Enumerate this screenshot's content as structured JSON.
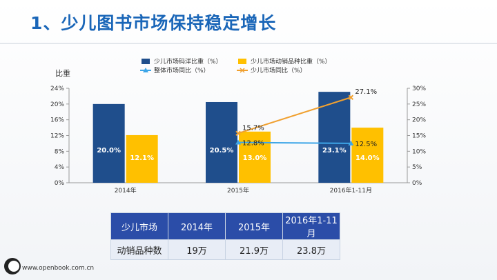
{
  "title": "1、少儿图书市场保持稳定增长",
  "footer": {
    "url": "www.openbook.com.cn"
  },
  "colors": {
    "bar_share": "#1f4e8c",
    "bar_titles": "#ffc000",
    "line_overall": "#3ea6e8",
    "line_children": "#f0a030",
    "title": "#1a66b8"
  },
  "chart_data": {
    "type": "bar",
    "categories": [
      "2014年",
      "2015年",
      "2016年1-11月"
    ],
    "ylabel": "比重",
    "ylim": [
      0,
      24
    ],
    "y_ticks": [
      "0%",
      "4%",
      "8%",
      "12%",
      "16%",
      "20%",
      "24%"
    ],
    "y2lim": [
      0,
      30
    ],
    "y2_ticks": [
      "0%",
      "5%",
      "10%",
      "15%",
      "20%",
      "25%",
      "30%"
    ],
    "series": [
      {
        "name": "少儿市场码洋比重（%）",
        "kind": "bar",
        "values": [
          20.0,
          20.5,
          23.1
        ],
        "labels": [
          "20.0%",
          "20.5%",
          "23.1%"
        ],
        "color": "#1f4e8c"
      },
      {
        "name": "少儿市场动销品种比重（%）",
        "kind": "bar",
        "values": [
          12.1,
          13.0,
          14.0
        ],
        "labels": [
          "12.1%",
          "13.0%",
          "14.0%"
        ],
        "color": "#ffc000"
      },
      {
        "name": "整体市场同比（%）",
        "kind": "line",
        "axis": "right",
        "values": [
          null,
          12.8,
          12.5
        ],
        "labels": [
          "",
          "12.8%",
          "12.5%"
        ],
        "color": "#3ea6e8"
      },
      {
        "name": "少儿市场同比（%）",
        "kind": "line",
        "axis": "right",
        "values": [
          null,
          15.7,
          27.1
        ],
        "labels": [
          "",
          "15.7%",
          "27.1%"
        ],
        "color": "#f0a030"
      }
    ],
    "legend_position": "top",
    "grid": false
  },
  "table": {
    "header": [
      "少儿市场",
      "2014年",
      "2015年",
      "2016年1-11月"
    ],
    "rows": [
      [
        "动销品种数",
        "19万",
        "21.9万",
        "23.8万"
      ]
    ]
  }
}
